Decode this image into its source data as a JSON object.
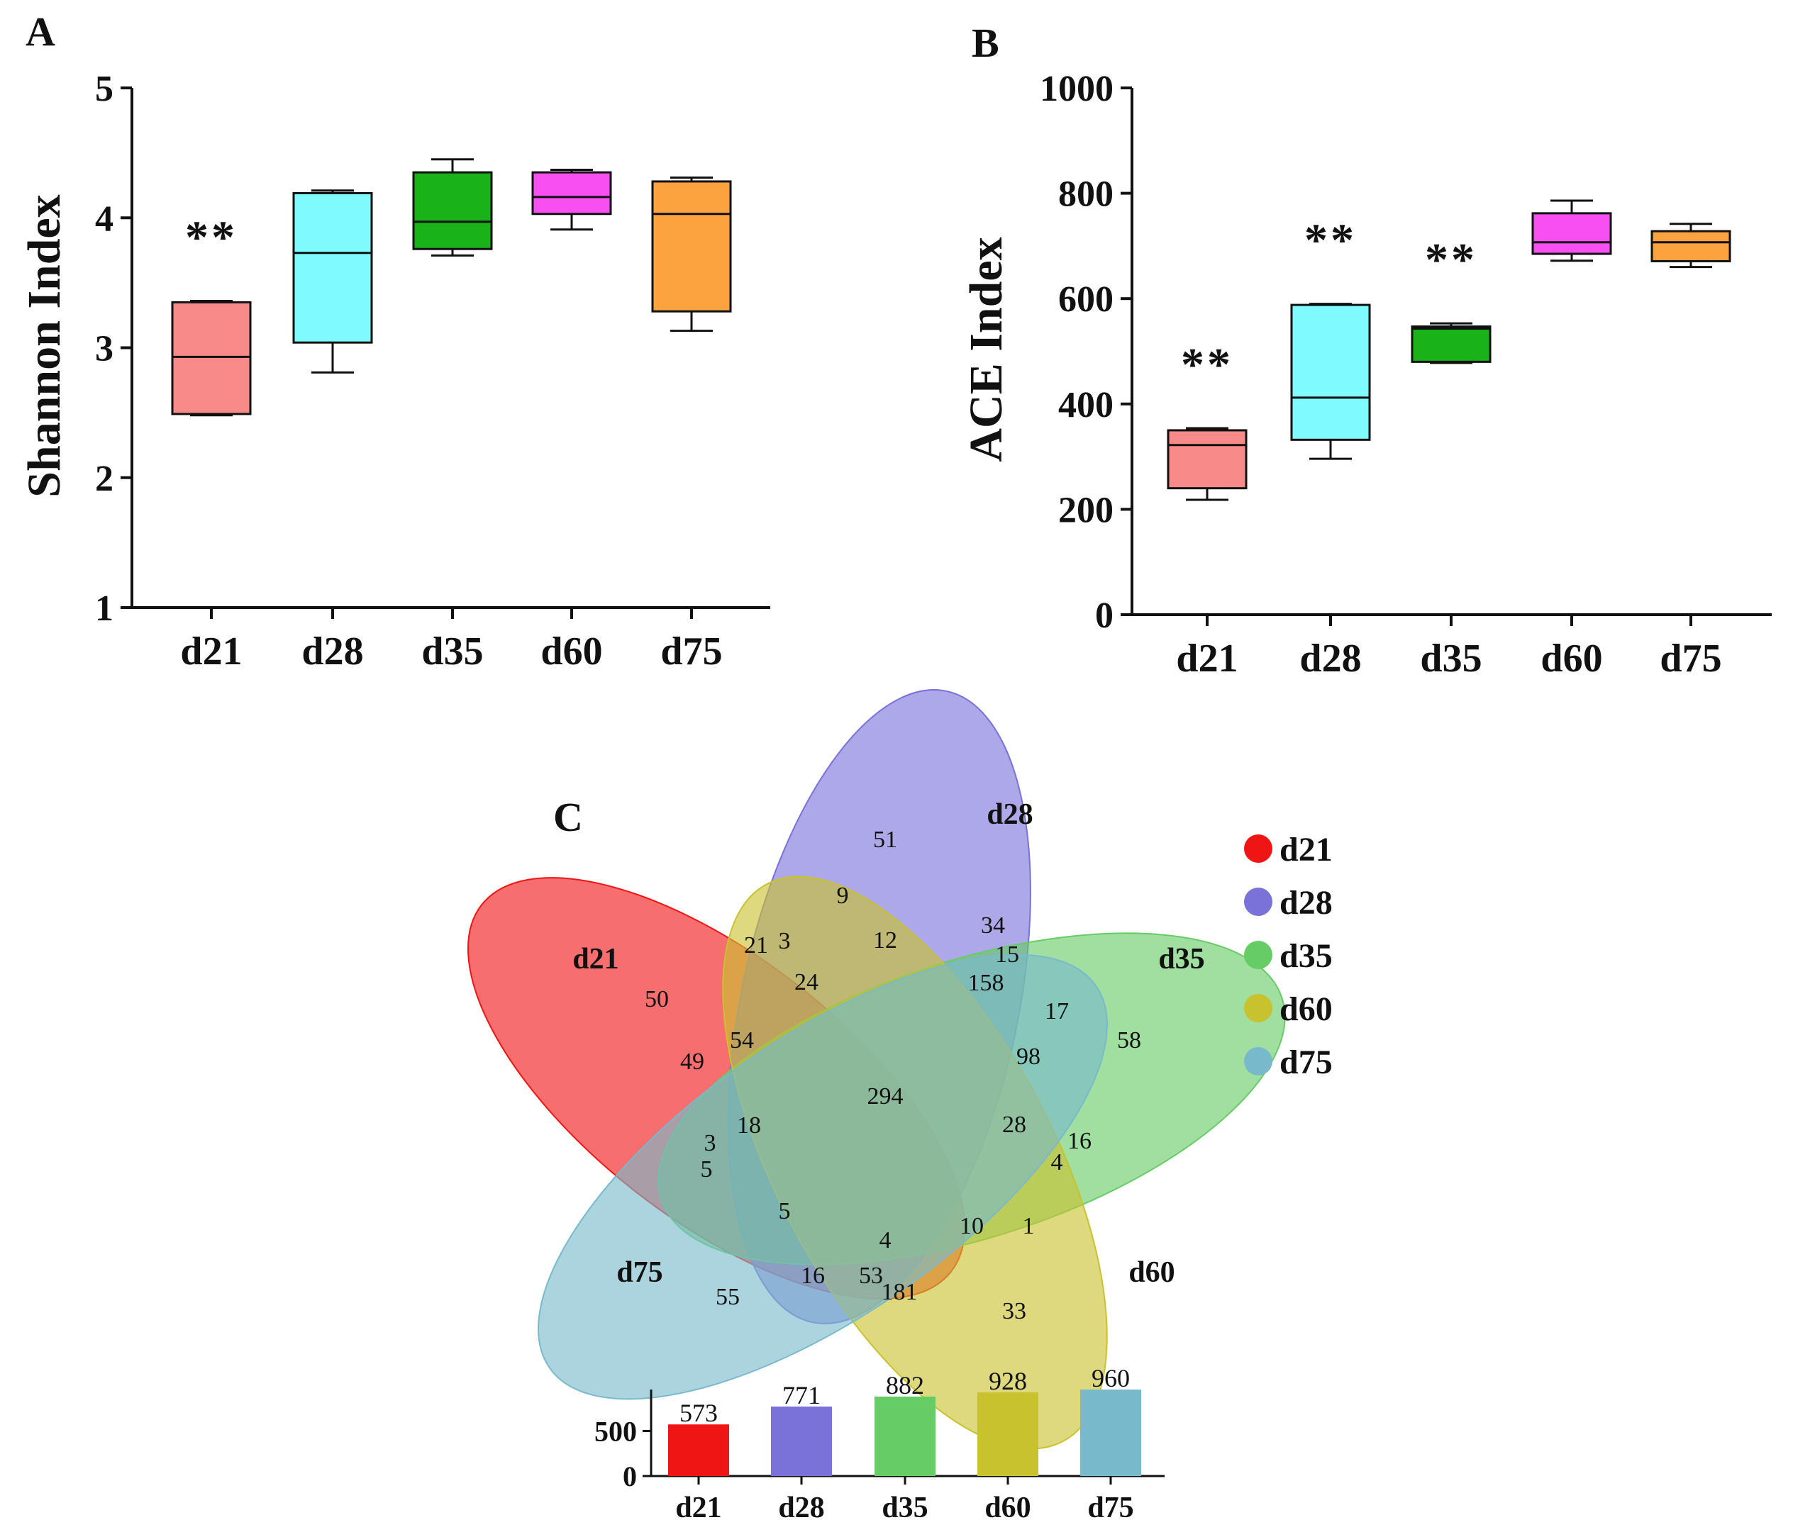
{
  "chart_data": [
    {
      "panel": "A",
      "type": "boxplot",
      "ylabel": "Shannon Index",
      "ylim": [
        1,
        5
      ],
      "yticks": [
        "1",
        "2",
        "3",
        "4",
        "5"
      ],
      "categories": [
        "d21",
        "d28",
        "d35",
        "d60",
        "d75"
      ],
      "boxes": [
        {
          "category": "d21",
          "min": 2.48,
          "q1": 2.49,
          "median": 2.93,
          "q3": 3.35,
          "max": 3.36,
          "color": "#f88a8a",
          "annotation": "**"
        },
        {
          "category": "d28",
          "min": 2.81,
          "q1": 3.04,
          "median": 3.73,
          "q3": 4.19,
          "max": 4.21,
          "color": "#7ffaff",
          "annotation": ""
        },
        {
          "category": "d35",
          "min": 3.71,
          "q1": 3.76,
          "median": 3.97,
          "q3": 4.35,
          "max": 4.45,
          "color": "#19b319",
          "annotation": ""
        },
        {
          "category": "d60",
          "min": 3.91,
          "q1": 4.03,
          "median": 4.16,
          "q3": 4.35,
          "max": 4.37,
          "color": "#f74ff2",
          "annotation": ""
        },
        {
          "category": "d75",
          "min": 3.13,
          "q1": 3.28,
          "median": 4.03,
          "q3": 4.28,
          "max": 4.31,
          "color": "#fca33f",
          "annotation": ""
        }
      ]
    },
    {
      "panel": "B",
      "type": "boxplot",
      "ylabel": "ACE Index",
      "ylim": [
        0,
        1000
      ],
      "yticks": [
        "0",
        "200",
        "400",
        "600",
        "800",
        "1000"
      ],
      "categories": [
        "d21",
        "d28",
        "d35",
        "d60",
        "d75"
      ],
      "boxes": [
        {
          "category": "d21",
          "min": 218,
          "q1": 240,
          "median": 322,
          "q3": 350,
          "max": 354,
          "color": "#f88a8a",
          "annotation": "**"
        },
        {
          "category": "d28",
          "min": 296,
          "q1": 332,
          "median": 412,
          "q3": 588,
          "max": 590,
          "color": "#7ffaff",
          "annotation": "**"
        },
        {
          "category": "d35",
          "min": 478,
          "q1": 480,
          "median": 543,
          "q3": 547,
          "max": 553,
          "color": "#19b319",
          "annotation": "**"
        },
        {
          "category": "d60",
          "min": 672,
          "q1": 685,
          "median": 707,
          "q3": 762,
          "max": 786,
          "color": "#f74ff2",
          "annotation": ""
        },
        {
          "category": "d75",
          "min": 660,
          "q1": 671,
          "median": 707,
          "q3": 728,
          "max": 742,
          "color": "#fca33f",
          "annotation": ""
        }
      ]
    },
    {
      "panel": "C",
      "type": "venn",
      "sets": [
        {
          "name": "d21",
          "color": "#f01515",
          "total": 573
        },
        {
          "name": "d28",
          "color": "#7a72d9",
          "total": 771
        },
        {
          "name": "d35",
          "color": "#66cc66",
          "total": 882
        },
        {
          "name": "d60",
          "color": "#c9c22f",
          "total": 928
        },
        {
          "name": "d75",
          "color": "#79b9cc",
          "total": 960
        }
      ],
      "region_counts": [
        "51",
        "9",
        "34",
        "21",
        "3",
        "12",
        "15",
        "158",
        "24",
        "50",
        "17",
        "58",
        "54",
        "98",
        "49",
        "294",
        "18",
        "28",
        "16",
        "3",
        "5",
        "4",
        "5",
        "10",
        "1",
        "4",
        "53",
        "181",
        "16",
        "55",
        "33"
      ]
    },
    {
      "panel": "C-inset",
      "type": "bar",
      "categories": [
        "d21",
        "d28",
        "d35",
        "d60",
        "d75"
      ],
      "values": [
        573,
        771,
        882,
        928,
        960
      ],
      "value_labels": [
        "573",
        "771",
        "882",
        "928",
        "960"
      ],
      "yticks": [
        "0",
        "500"
      ],
      "ylim": [
        0,
        960
      ],
      "colors": [
        "#f01515",
        "#7a72d9",
        "#66cc66",
        "#c9c22f",
        "#79b9cc"
      ]
    }
  ],
  "panel_labels": {
    "a": "A",
    "b": "B",
    "c": "C"
  },
  "legend_title": ""
}
